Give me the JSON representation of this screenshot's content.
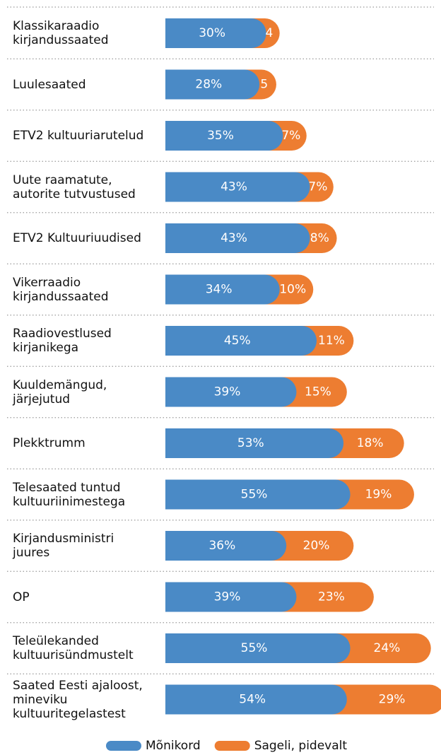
{
  "chart_data": {
    "type": "stacked-bar-horizontal",
    "categories": [
      "Klassikaraadio\nkirjandussaated",
      "Luulesaated",
      "ETV2 kultuuriarutelud",
      "Uute raamatute,\nautorite tutvustused",
      "ETV2 Kultuuriuudised",
      "Vikerraadio\nkirjandussaated",
      "Raadiovestlused\nkirjanikega",
      "Kuuldemängud,\njärjejutud",
      "Plekktrumm",
      "Telesaated tuntud\nkultuuriinimestega",
      "Kirjandusministri\njuures",
      "OP",
      "Teleülekanded\nkultuurisündmustelt",
      "Saated Eesti ajaloost,\nmineviku\nkultuuritegelastest"
    ],
    "series": [
      {
        "name": "Mõnikord",
        "color": "#4a8ac6",
        "values": [
          30,
          28,
          35,
          43,
          43,
          34,
          45,
          39,
          53,
          55,
          36,
          39,
          55,
          54
        ],
        "value_labels": [
          "30%",
          "28%",
          "35%",
          "43%",
          "43%",
          "34%",
          "45%",
          "39%",
          "53%",
          "55%",
          "36%",
          "39%",
          "55%",
          "54%"
        ]
      },
      {
        "name": "Sageli, pidevalt",
        "color": "#ed7d31",
        "values": [
          4,
          5,
          7,
          7,
          8,
          10,
          11,
          15,
          18,
          19,
          20,
          23,
          24,
          29
        ],
        "value_labels": [
          "4",
          "5",
          "7%",
          "7%",
          "8%",
          "10%",
          "11%",
          "15%",
          "18%",
          "19%",
          "20%",
          "23%",
          "24%",
          "29%"
        ]
      }
    ],
    "xlim": [
      0,
      82
    ]
  }
}
